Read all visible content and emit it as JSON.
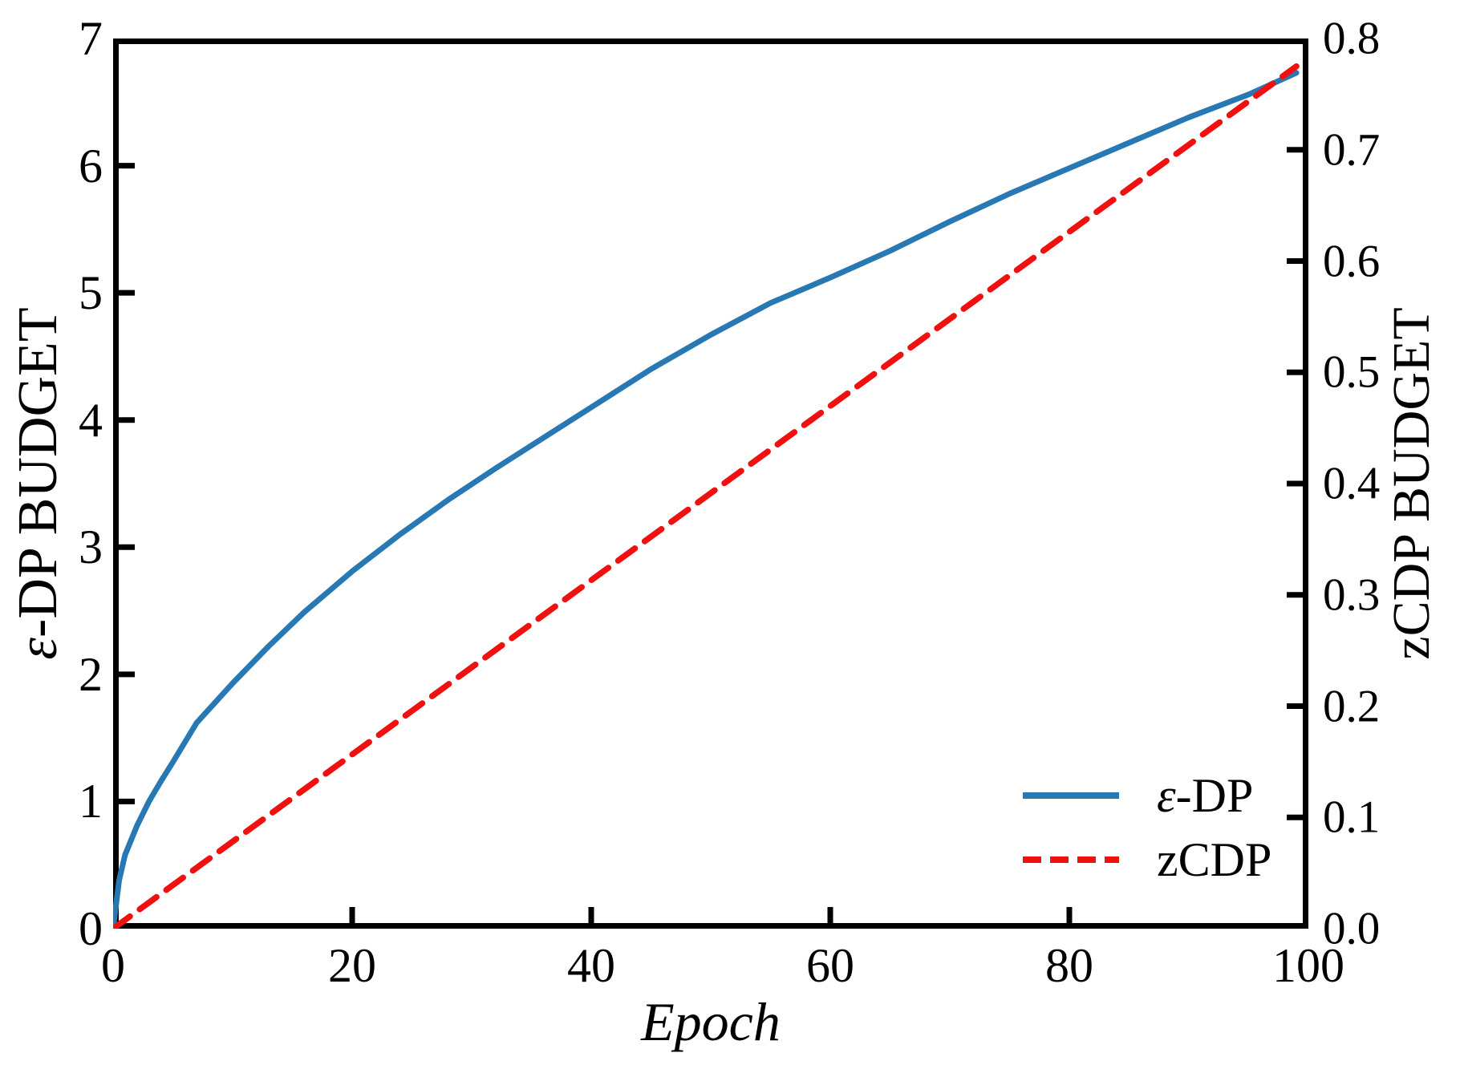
{
  "chart_data": {
    "type": "line",
    "title": "",
    "xlabel": "Epoch",
    "ylabel_left": {
      "symbol": "ε",
      "text": "-DP BUDGET"
    },
    "ylabel_right": "zCDP BUDGET",
    "xlim": [
      0,
      100
    ],
    "ylim_left": [
      0,
      7
    ],
    "ylim_right": [
      0,
      0.8
    ],
    "grid": false,
    "legend_position": "lower right",
    "background_color": "#ffffff",
    "axis_color": "#000000",
    "x_ticks": {
      "values": [
        0,
        20,
        40,
        60,
        80,
        100
      ],
      "labels": [
        "0",
        "20",
        "40",
        "60",
        "80",
        "100"
      ]
    },
    "y_ticks_left": {
      "values": [
        0,
        1,
        2,
        3,
        4,
        5,
        6,
        7
      ],
      "labels": [
        "0",
        "1",
        "2",
        "3",
        "4",
        "5",
        "6",
        "7"
      ]
    },
    "y_ticks_right": {
      "values": [
        0,
        0.1,
        0.2,
        0.3,
        0.4,
        0.5,
        0.6,
        0.7,
        0.8
      ],
      "labels": [
        "0.0",
        "0.1",
        "0.2",
        "0.3",
        "0.4",
        "0.5",
        "0.6",
        "0.7",
        "0.8"
      ]
    },
    "series": [
      {
        "name": "ε-DP",
        "legend": {
          "symbol": "ε",
          "text": "-DP"
        },
        "axis": "left",
        "line_style": "solid",
        "color": "#2878b4",
        "x": [
          0,
          0.5,
          1,
          2,
          3,
          4,
          5,
          7,
          10,
          13,
          16,
          20,
          24,
          28,
          32,
          36,
          40,
          45,
          50,
          55,
          60,
          65,
          70,
          75,
          80,
          85,
          90,
          95,
          99
        ],
        "y": [
          0,
          0.38,
          0.58,
          0.81,
          1.0,
          1.16,
          1.31,
          1.62,
          1.93,
          2.22,
          2.49,
          2.81,
          3.1,
          3.37,
          3.62,
          3.86,
          4.1,
          4.4,
          4.67,
          4.92,
          5.12,
          5.33,
          5.56,
          5.78,
          5.98,
          6.18,
          6.38,
          6.56,
          6.73
        ]
      },
      {
        "name": "zCDP",
        "legend": {
          "symbol": "",
          "text": "zCDP"
        },
        "axis": "right",
        "line_style": "dashed",
        "color": "#f11010",
        "x": [
          0,
          99
        ],
        "y": [
          0,
          0.775
        ]
      }
    ]
  }
}
